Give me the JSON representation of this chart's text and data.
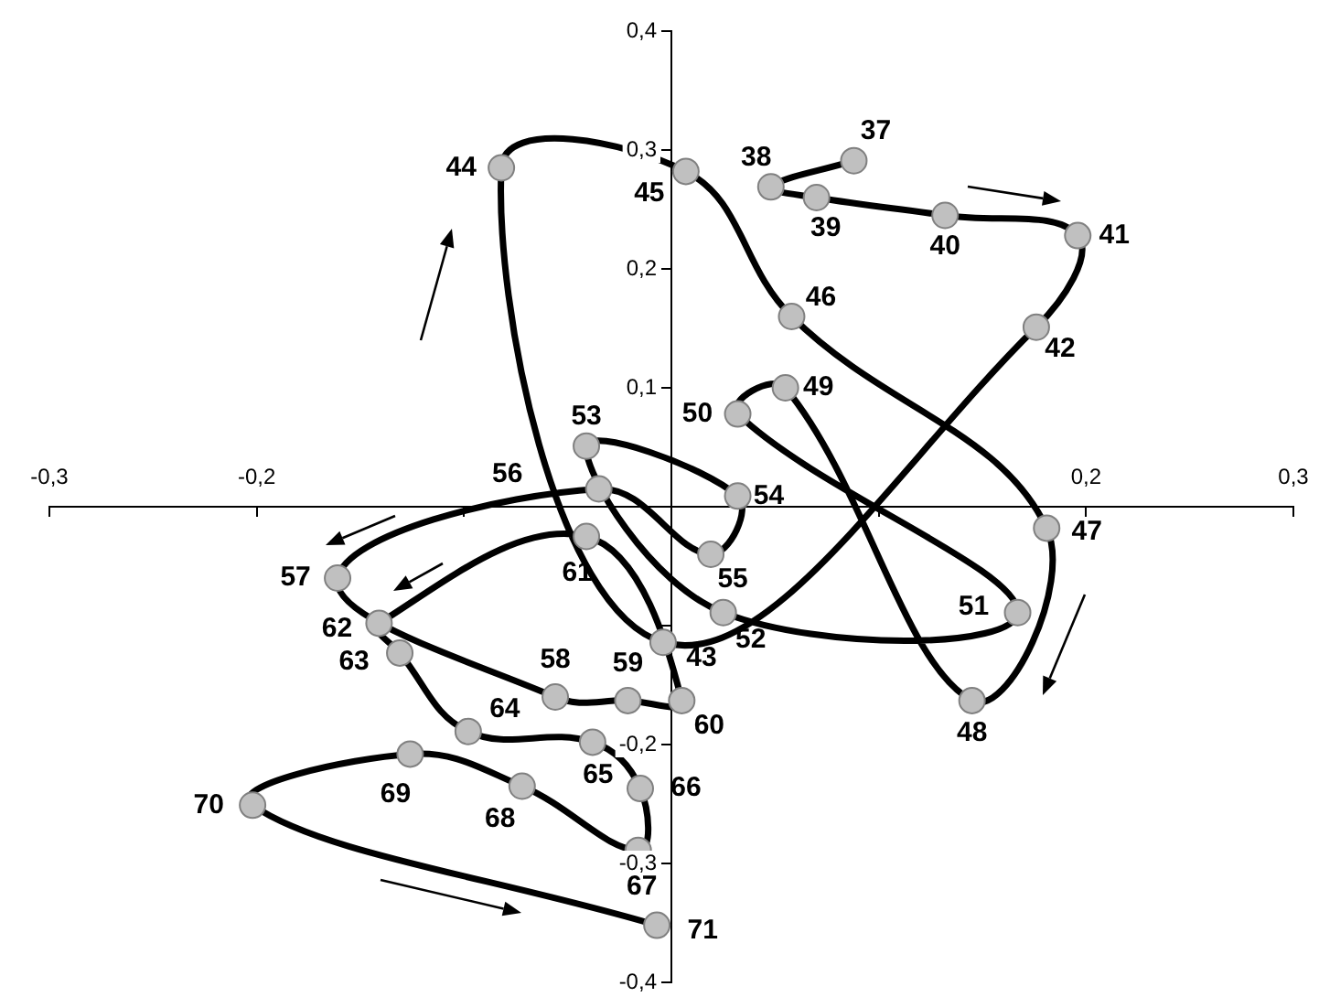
{
  "chart_data": {
    "type": "line",
    "x": [
      0.088,
      0.048,
      0.07,
      0.132,
      0.196,
      0.176,
      -0.004,
      -0.082,
      0.007,
      0.058,
      0.181,
      0.145,
      0.055,
      0.032,
      0.167,
      0.025,
      -0.041,
      0.032,
      0.019,
      -0.035,
      -0.161,
      -0.056,
      -0.021,
      0.005,
      -0.041,
      -0.141,
      -0.131,
      -0.098,
      -0.038,
      -0.015,
      -0.016,
      -0.072,
      -0.126,
      -0.202,
      -0.007
    ],
    "values": [
      0.291,
      0.269,
      0.26,
      0.245,
      0.228,
      0.151,
      -0.114,
      0.285,
      0.282,
      0.16,
      -0.018,
      -0.163,
      0.1,
      0.078,
      -0.089,
      -0.089,
      0.051,
      0.009,
      -0.04,
      0.015,
      -0.06,
      -0.16,
      -0.163,
      -0.163,
      -0.025,
      -0.098,
      -0.123,
      -0.189,
      -0.198,
      -0.237,
      -0.289,
      -0.235,
      -0.208,
      -0.251,
      -0.352
    ],
    "color": "#000000",
    "colors": [
      "#c0c0c0",
      "#c0c0c0",
      "#c0c0c0",
      "#c0c0c0",
      "#c0c0c0",
      "#c0c0c0",
      "#c0c0c0",
      "#c0c0c0",
      "#c0c0c0",
      "#c0c0c0",
      "#c0c0c0",
      "#c0c0c0",
      "#c0c0c0",
      "#c0c0c0",
      "#c0c0c0",
      "#c0c0c0",
      "#c0c0c0",
      "#c0c0c0",
      "#c0c0c0",
      "#c0c0c0",
      "#c0c0c0",
      "#c0c0c0",
      "#c0c0c0",
      "#c0c0c0",
      "#c0c0c0",
      "#c0c0c0",
      "#c0c0c0",
      "#c0c0c0",
      "#c0c0c0",
      "#c0c0c0",
      "#c0c0c0",
      "#c0c0c0",
      "#c0c0c0",
      "#c0c0c0",
      "#c0c0c0"
    ],
    "marker": "circle",
    "line_style": "solid",
    "grid": false,
    "legend": false,
    "xlim": [
      -0.3,
      0.3
    ],
    "xticks": [
      {
        "value": -0.3,
        "label": "-0,3"
      },
      {
        "value": -0.2,
        "label": "-0,2"
      },
      {
        "value": -0.1,
        "label": null
      },
      {
        "value": 0,
        "label": null
      },
      {
        "value": 0.1,
        "label": null
      },
      {
        "value": 0.2,
        "label": "0,2"
      },
      {
        "value": 0.3,
        "label": "0,3"
      }
    ],
    "ylim": [
      -0.4,
      0.4
    ],
    "yticks": [
      {
        "value": -0.4,
        "label": "-0,4"
      },
      {
        "value": -0.3,
        "label": "-0,3"
      },
      {
        "value": -0.2,
        "label": "-0,2"
      },
      {
        "value": -0.1,
        "label": null
      },
      {
        "value": 0,
        "label": null
      },
      {
        "value": 0.1,
        "label": "0,1"
      },
      {
        "value": 0.2,
        "label": "0,2"
      },
      {
        "value": 0.3,
        "label": "0,3"
      },
      {
        "value": 0.4,
        "label": "0,4"
      }
    ],
    "annotations": [
      {
        "text": "37",
        "x": 0.088,
        "y": 0.291
      },
      {
        "text": "38",
        "x": 0.048,
        "y": 0.269
      },
      {
        "text": "39",
        "x": 0.07,
        "y": 0.26
      },
      {
        "text": "40",
        "x": 0.132,
        "y": 0.245
      },
      {
        "text": "41",
        "x": 0.196,
        "y": 0.228
      },
      {
        "text": "42",
        "x": 0.176,
        "y": 0.151
      },
      {
        "text": "43",
        "x": -0.004,
        "y": -0.114
      },
      {
        "text": "44",
        "x": -0.082,
        "y": 0.285
      },
      {
        "text": "45",
        "x": 0.007,
        "y": 0.282
      },
      {
        "text": "46",
        "x": 0.058,
        "y": 0.16
      },
      {
        "text": "47",
        "x": 0.181,
        "y": -0.018
      },
      {
        "text": "48",
        "x": 0.145,
        "y": -0.163
      },
      {
        "text": "49",
        "x": 0.055,
        "y": 0.1
      },
      {
        "text": "50",
        "x": 0.032,
        "y": 0.078
      },
      {
        "text": "51",
        "x": 0.167,
        "y": -0.089
      },
      {
        "text": "52",
        "x": 0.025,
        "y": -0.089
      },
      {
        "text": "53",
        "x": -0.041,
        "y": 0.051
      },
      {
        "text": "54",
        "x": 0.032,
        "y": 0.009
      },
      {
        "text": "55",
        "x": 0.019,
        "y": -0.04
      },
      {
        "text": "56",
        "x": -0.035,
        "y": 0.015
      },
      {
        "text": "57",
        "x": -0.161,
        "y": -0.06
      },
      {
        "text": "58",
        "x": -0.056,
        "y": -0.16
      },
      {
        "text": "59",
        "x": -0.021,
        "y": -0.163
      },
      {
        "text": "60",
        "x": 0.005,
        "y": -0.163
      },
      {
        "text": "61",
        "x": -0.041,
        "y": -0.025
      },
      {
        "text": "62",
        "x": -0.141,
        "y": -0.098
      },
      {
        "text": "63",
        "x": -0.131,
        "y": -0.123
      },
      {
        "text": "64",
        "x": -0.098,
        "y": -0.189
      },
      {
        "text": "65",
        "x": -0.038,
        "y": -0.198
      },
      {
        "text": "66",
        "x": -0.015,
        "y": -0.237
      },
      {
        "text": "67",
        "x": -0.016,
        "y": -0.289
      },
      {
        "text": "68",
        "x": -0.072,
        "y": -0.235
      },
      {
        "text": "69",
        "x": -0.126,
        "y": -0.208
      },
      {
        "text": "70",
        "x": -0.202,
        "y": -0.251
      },
      {
        "text": "71",
        "x": -0.007,
        "y": -0.352
      }
    ]
  }
}
